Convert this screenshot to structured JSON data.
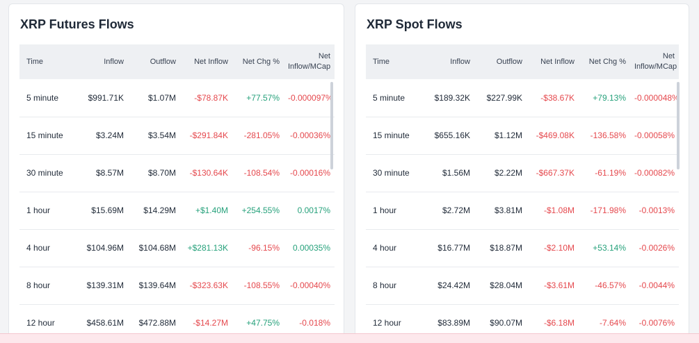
{
  "futures": {
    "title": "XRP Futures Flows",
    "headers": [
      "Time",
      "Inflow",
      "Outflow",
      "Net Inflow",
      "Net Chg %",
      "Net Inflow/MCap"
    ],
    "rows": [
      {
        "time": "5 minute",
        "inflow": "$991.71K",
        "outflow": "$1.07M",
        "net_inflow": "-$78.87K",
        "net_chg": "+77.57%",
        "net_mcap": "-0.000097%"
      },
      {
        "time": "15 minute",
        "inflow": "$3.24M",
        "outflow": "$3.54M",
        "net_inflow": "-$291.84K",
        "net_chg": "-281.05%",
        "net_mcap": "-0.00036%"
      },
      {
        "time": "30 minute",
        "inflow": "$8.57M",
        "outflow": "$8.70M",
        "net_inflow": "-$130.64K",
        "net_chg": "-108.54%",
        "net_mcap": "-0.00016%"
      },
      {
        "time": "1 hour",
        "inflow": "$15.69M",
        "outflow": "$14.29M",
        "net_inflow": "+$1.40M",
        "net_chg": "+254.55%",
        "net_mcap": "0.0017%"
      },
      {
        "time": "4 hour",
        "inflow": "$104.96M",
        "outflow": "$104.68M",
        "net_inflow": "+$281.13K",
        "net_chg": "-96.15%",
        "net_mcap": "0.00035%"
      },
      {
        "time": "8 hour",
        "inflow": "$139.31M",
        "outflow": "$139.64M",
        "net_inflow": "-$323.63K",
        "net_chg": "-108.55%",
        "net_mcap": "-0.00040%"
      },
      {
        "time": "12 hour",
        "inflow": "$458.61M",
        "outflow": "$472.88M",
        "net_inflow": "-$14.27M",
        "net_chg": "+47.75%",
        "net_mcap": "-0.018%"
      }
    ]
  },
  "spot": {
    "title": "XRP Spot Flows",
    "headers": [
      "Time",
      "Inflow",
      "Outflow",
      "Net Inflow",
      "Net Chg %",
      "Net Inflow/MCap"
    ],
    "rows": [
      {
        "time": "5 minute",
        "inflow": "$189.32K",
        "outflow": "$227.99K",
        "net_inflow": "-$38.67K",
        "net_chg": "+79.13%",
        "net_mcap": "-0.000048%"
      },
      {
        "time": "15 minute",
        "inflow": "$655.16K",
        "outflow": "$1.12M",
        "net_inflow": "-$469.08K",
        "net_chg": "-136.58%",
        "net_mcap": "-0.00058%"
      },
      {
        "time": "30 minute",
        "inflow": "$1.56M",
        "outflow": "$2.22M",
        "net_inflow": "-$667.37K",
        "net_chg": "-61.19%",
        "net_mcap": "-0.00082%"
      },
      {
        "time": "1 hour",
        "inflow": "$2.72M",
        "outflow": "$3.81M",
        "net_inflow": "-$1.08M",
        "net_chg": "-171.98%",
        "net_mcap": "-0.0013%"
      },
      {
        "time": "4 hour",
        "inflow": "$16.77M",
        "outflow": "$18.87M",
        "net_inflow": "-$2.10M",
        "net_chg": "+53.14%",
        "net_mcap": "-0.0026%"
      },
      {
        "time": "8 hour",
        "inflow": "$24.42M",
        "outflow": "$28.04M",
        "net_inflow": "-$3.61M",
        "net_chg": "-46.57%",
        "net_mcap": "-0.0044%"
      },
      {
        "time": "12 hour",
        "inflow": "$83.89M",
        "outflow": "$90.07M",
        "net_inflow": "-$6.18M",
        "net_chg": "-7.64%",
        "net_mcap": "-0.0076%"
      }
    ]
  },
  "colors": {
    "negative": "#e5484d",
    "positive": "#26a17b",
    "header_bg": "#eef0f3"
  }
}
